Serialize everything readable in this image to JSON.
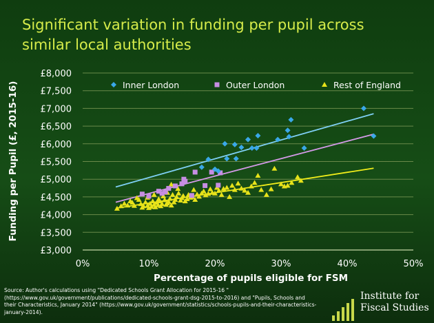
{
  "title": "Significant variation in funding per pupil across similar local authorities",
  "source": {
    "text": "Source: Author's calculations using  \"Dedicated Schools Grant Allocation for 2015-16 \" (https://www.gov.uk/government/publications/dedicated-schools-grant-dsg-2015-to-2016) and  \"Pupils, Schools and their Characteristics, January 2014\" (https://www.gov.uk/government/statistics/schools-pupils-and-their-characteristics-january-2014)."
  },
  "logo": {
    "line1": "Institute for",
    "line2": "Fiscal Studies"
  },
  "colors": {
    "background": "#164d16",
    "title": "#d6ec4a",
    "inner_london": "#3aa8e8",
    "inner_london_trend": "#7fd0f5",
    "outer_london": "#c68ee2",
    "outer_london_trend": "#d49ae8",
    "rest_of_england": "#e6e21a",
    "rest_of_england_trend": "#f2ee1a",
    "gridline": "#6b8a4a"
  },
  "chart_data": {
    "type": "scatter",
    "xlabel": "Percentage of pupils eligible for FSM",
    "ylabel": "Funding per Pupil (£, 2015-16)",
    "xlim": [
      0,
      0.5
    ],
    "ylim": [
      3000,
      8000
    ],
    "xticks": [
      "0%",
      "10%",
      "20%",
      "30%",
      "40%",
      "50%"
    ],
    "yticks": [
      "£3,000",
      "£3,500",
      "£4,000",
      "£4,500",
      "£5,000",
      "£5,500",
      "£6,000",
      "£6,500",
      "£7,000",
      "£7,500",
      "£8,000"
    ],
    "grid": "horizontal",
    "legend_position": "top",
    "series": [
      {
        "name": "Inner London",
        "marker": "diamond",
        "points": [
          [
            0.425,
            7000
          ],
          [
            0.44,
            6220
          ],
          [
            0.315,
            6680
          ],
          [
            0.31,
            6380
          ],
          [
            0.335,
            5880
          ],
          [
            0.312,
            6200
          ],
          [
            0.295,
            6120
          ],
          [
            0.265,
            6230
          ],
          [
            0.25,
            6120
          ],
          [
            0.24,
            5900
          ],
          [
            0.256,
            5880
          ],
          [
            0.263,
            5880
          ],
          [
            0.23,
            5980
          ],
          [
            0.215,
            6000
          ],
          [
            0.232,
            5580
          ],
          [
            0.218,
            5580
          ],
          [
            0.19,
            5560
          ],
          [
            0.2,
            5280
          ],
          [
            0.205,
            5230
          ],
          [
            0.18,
            5340
          ]
        ],
        "trend": [
          [
            0.05,
            4780
          ],
          [
            0.44,
            6850
          ]
        ]
      },
      {
        "name": "Outer London",
        "marker": "square",
        "points": [
          [
            0.09,
            4580
          ],
          [
            0.1,
            4520
          ],
          [
            0.115,
            4660
          ],
          [
            0.12,
            4600
          ],
          [
            0.125,
            4640
          ],
          [
            0.13,
            4740
          ],
          [
            0.14,
            4810
          ],
          [
            0.15,
            4870
          ],
          [
            0.155,
            4940
          ],
          [
            0.153,
            5000
          ],
          [
            0.17,
            5200
          ],
          [
            0.195,
            5200
          ],
          [
            0.208,
            5180
          ],
          [
            0.205,
            4830
          ],
          [
            0.185,
            4820
          ],
          [
            0.165,
            4540
          ]
        ],
        "trend": [
          [
            0.05,
            4350
          ],
          [
            0.44,
            6270
          ]
        ]
      },
      {
        "name": "Rest of England",
        "marker": "triangle",
        "points": [
          [
            0.052,
            4170
          ],
          [
            0.058,
            4240
          ],
          [
            0.063,
            4310
          ],
          [
            0.068,
            4260
          ],
          [
            0.072,
            4380
          ],
          [
            0.075,
            4340
          ],
          [
            0.078,
            4250
          ],
          [
            0.082,
            4470
          ],
          [
            0.085,
            4420
          ],
          [
            0.088,
            4300
          ],
          [
            0.09,
            4200
          ],
          [
            0.092,
            4240
          ],
          [
            0.095,
            4350
          ],
          [
            0.098,
            4250
          ],
          [
            0.1,
            4190
          ],
          [
            0.102,
            4310
          ],
          [
            0.104,
            4220
          ],
          [
            0.106,
            4380
          ],
          [
            0.108,
            4280
          ],
          [
            0.11,
            4210
          ],
          [
            0.112,
            4340
          ],
          [
            0.114,
            4270
          ],
          [
            0.116,
            4380
          ],
          [
            0.118,
            4240
          ],
          [
            0.12,
            4300
          ],
          [
            0.122,
            4520
          ],
          [
            0.124,
            4410
          ],
          [
            0.126,
            4280
          ],
          [
            0.128,
            4320
          ],
          [
            0.13,
            4360
          ],
          [
            0.132,
            4450
          ],
          [
            0.134,
            4260
          ],
          [
            0.136,
            4560
          ],
          [
            0.138,
            4350
          ],
          [
            0.14,
            4420
          ],
          [
            0.142,
            4500
          ],
          [
            0.145,
            4600
          ],
          [
            0.148,
            4400
          ],
          [
            0.15,
            4470
          ],
          [
            0.152,
            4530
          ],
          [
            0.155,
            4380
          ],
          [
            0.158,
            4440
          ],
          [
            0.16,
            4560
          ],
          [
            0.163,
            4480
          ],
          [
            0.166,
            4500
          ],
          [
            0.17,
            4420
          ],
          [
            0.173,
            4570
          ],
          [
            0.176,
            4510
          ],
          [
            0.18,
            4600
          ],
          [
            0.183,
            4660
          ],
          [
            0.186,
            4550
          ],
          [
            0.19,
            4590
          ],
          [
            0.193,
            4720
          ],
          [
            0.196,
            4620
          ],
          [
            0.2,
            4600
          ],
          [
            0.203,
            4760
          ],
          [
            0.206,
            4680
          ],
          [
            0.21,
            4560
          ],
          [
            0.213,
            4730
          ],
          [
            0.218,
            4760
          ],
          [
            0.222,
            4500
          ],
          [
            0.226,
            4820
          ],
          [
            0.23,
            4700
          ],
          [
            0.235,
            4880
          ],
          [
            0.24,
            4740
          ],
          [
            0.245,
            4680
          ],
          [
            0.25,
            4620
          ],
          [
            0.255,
            4800
          ],
          [
            0.26,
            4900
          ],
          [
            0.265,
            5100
          ],
          [
            0.27,
            4700
          ],
          [
            0.278,
            4560
          ],
          [
            0.285,
            4720
          ],
          [
            0.29,
            5300
          ],
          [
            0.3,
            4860
          ],
          [
            0.305,
            4800
          ],
          [
            0.31,
            4820
          ],
          [
            0.316,
            4900
          ],
          [
            0.325,
            5060
          ],
          [
            0.33,
            4960
          ],
          [
            0.134,
            4850
          ],
          [
            0.128,
            4620
          ],
          [
            0.115,
            4440
          ],
          [
            0.108,
            4560
          ],
          [
            0.098,
            4480
          ],
          [
            0.144,
            4730
          ],
          [
            0.168,
            4700
          ]
        ],
        "trend": [
          [
            0.05,
            4180
          ],
          [
            0.44,
            5310
          ]
        ]
      }
    ]
  }
}
